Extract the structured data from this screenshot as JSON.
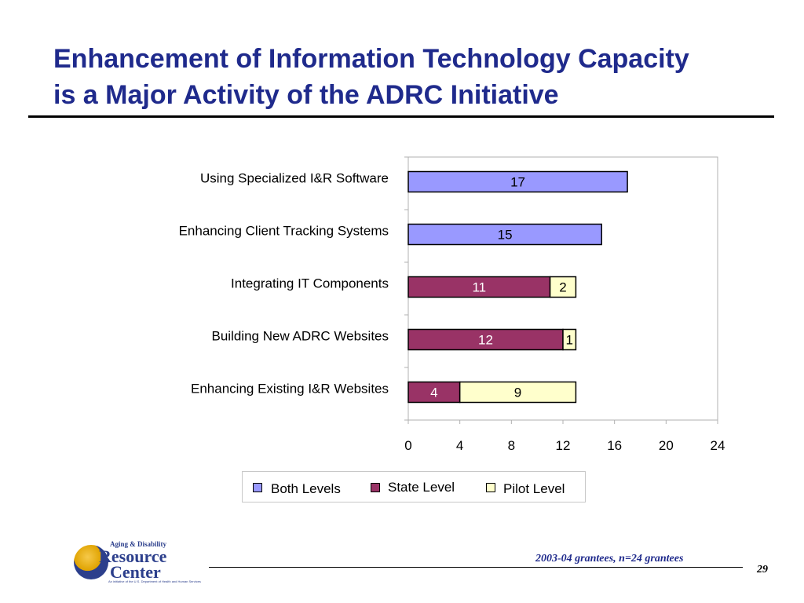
{
  "slide": {
    "title_line1": "Enhancement of Information Technology Capacity",
    "title_line2": "is a Major Activity of the ADRC Initiative",
    "footnote": "2003-04 grantees, n=24 grantees",
    "page_number": "29"
  },
  "logo": {
    "line1": "Aging & Disability",
    "line2": "Resource",
    "line3": "Center",
    "line4": "An initiative of the U.S. Department of Health and Human Services"
  },
  "legend": {
    "items": [
      "Both Levels",
      "State Level",
      "Pilot Level"
    ]
  },
  "colors": {
    "both": "#9999ff",
    "state": "#993366",
    "pilot": "#ffffcc",
    "title": "#1f2a8c"
  },
  "chart_data": {
    "type": "bar",
    "orientation": "horizontal",
    "stacked": true,
    "categories": [
      "Using Specialized I&R Software",
      "Enhancing Client Tracking Systems",
      "Integrating IT Components",
      "Building New ADRC Websites",
      "Enhancing Existing I&R Websites"
    ],
    "series": [
      {
        "name": "Both Levels",
        "values": [
          17,
          15,
          0,
          0,
          0
        ]
      },
      {
        "name": "State Level",
        "values": [
          0,
          0,
          11,
          12,
          4
        ]
      },
      {
        "name": "Pilot Level",
        "values": [
          0,
          0,
          2,
          1,
          9
        ]
      }
    ],
    "xlim": [
      0,
      24
    ],
    "xticks": [
      "0",
      "4",
      "8",
      "12",
      "16",
      "20",
      "24"
    ],
    "legend_position": "bottom",
    "grid": false
  }
}
